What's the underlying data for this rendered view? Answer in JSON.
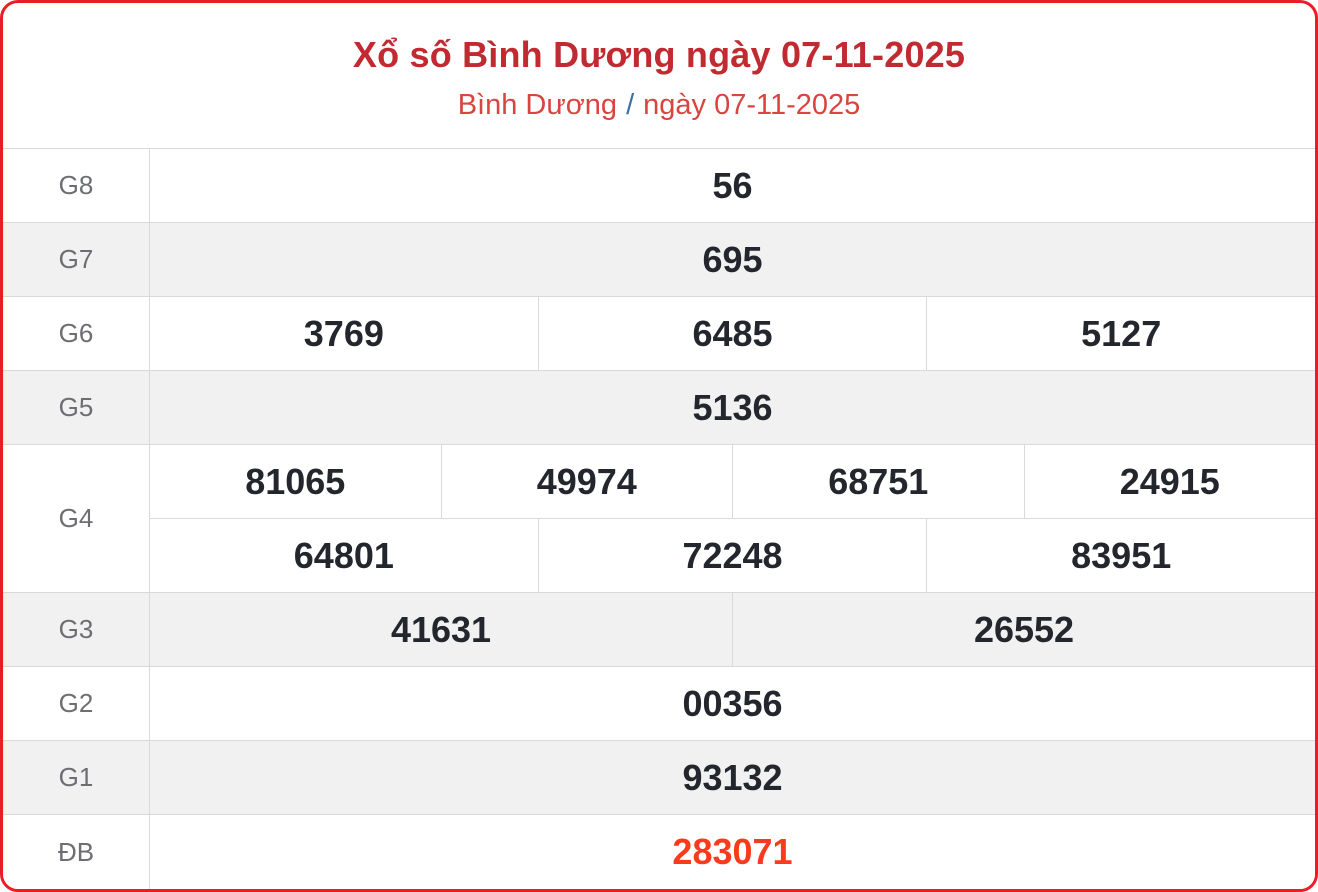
{
  "header": {
    "title": "Xổ số Bình Dương ngày 07-11-2025",
    "subtitle_region": "Bình Dương",
    "subtitle_separator": "/",
    "subtitle_date": "ngày 07-11-2025"
  },
  "colors": {
    "border_red": "#ec1c24",
    "title_red": "#c02a30",
    "subtitle_red": "#d8453f",
    "slash_blue": "#3a6fa8",
    "special_red": "#fa3a1d",
    "number_dark": "#23272d",
    "label_gray": "#6c6e72",
    "row_alt_bg": "#f1f1f1",
    "cell_border": "#d9d9d9"
  },
  "table": {
    "rows": [
      {
        "label": "G8",
        "cells": [
          "56"
        ]
      },
      {
        "label": "G7",
        "cells": [
          "695"
        ]
      },
      {
        "label": "G6",
        "cells": [
          "3769",
          "6485",
          "5127"
        ]
      },
      {
        "label": "G5",
        "cells": [
          "5136"
        ]
      },
      {
        "label": "G4",
        "cells_row1": [
          "81065",
          "49974",
          "68751",
          "24915"
        ],
        "cells_row2": [
          "64801",
          "72248",
          "83951"
        ]
      },
      {
        "label": "G3",
        "cells": [
          "41631",
          "26552"
        ]
      },
      {
        "label": "G2",
        "cells": [
          "00356"
        ]
      },
      {
        "label": "G1",
        "cells": [
          "93132"
        ]
      },
      {
        "label": "ĐB",
        "cells": [
          "283071"
        ]
      }
    ]
  }
}
